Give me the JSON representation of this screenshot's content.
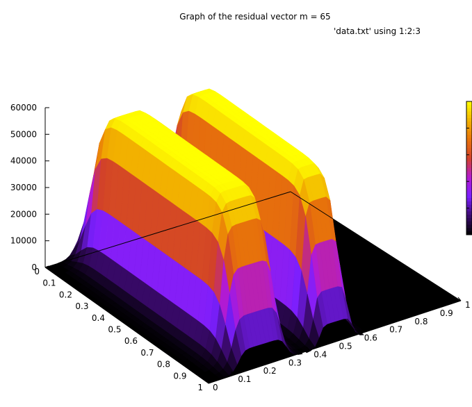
{
  "chart_data": {
    "type": "surface3d",
    "title": "Graph of the residual vector m = 65",
    "legend_key": "'data.txt' using 1:2:3",
    "z_ticks": [
      "0",
      "10000",
      "20000",
      "30000",
      "40000",
      "50000",
      "60000"
    ],
    "x_ticks": [
      "0",
      "0.1",
      "0.2",
      "0.3",
      "0.4",
      "0.5",
      "0.6",
      "0.7",
      "0.8",
      "0.9",
      "1"
    ],
    "y_ticks": [
      "0",
      "0.1",
      "0.2",
      "0.3",
      "0.4",
      "0.5",
      "0.6",
      "0.7",
      "0.8",
      "0.9",
      "1"
    ],
    "zlim": [
      0,
      60000
    ],
    "xlim": [
      0,
      1
    ],
    "ylim": [
      0,
      1
    ],
    "palette": [
      "#000000",
      "#3b0a6e",
      "#7b1fff",
      "#b31ad2",
      "#d1402a",
      "#e8730a",
      "#f2b300",
      "#ffff00"
    ],
    "surface": {
      "description_values": "two ridges running along the 0.1-0.9 axis, peaks near z=60000, plateau elsewhere at 0",
      "ridge1_peak": 60000,
      "ridge2_peak": 60000,
      "baseline": 0
    }
  }
}
